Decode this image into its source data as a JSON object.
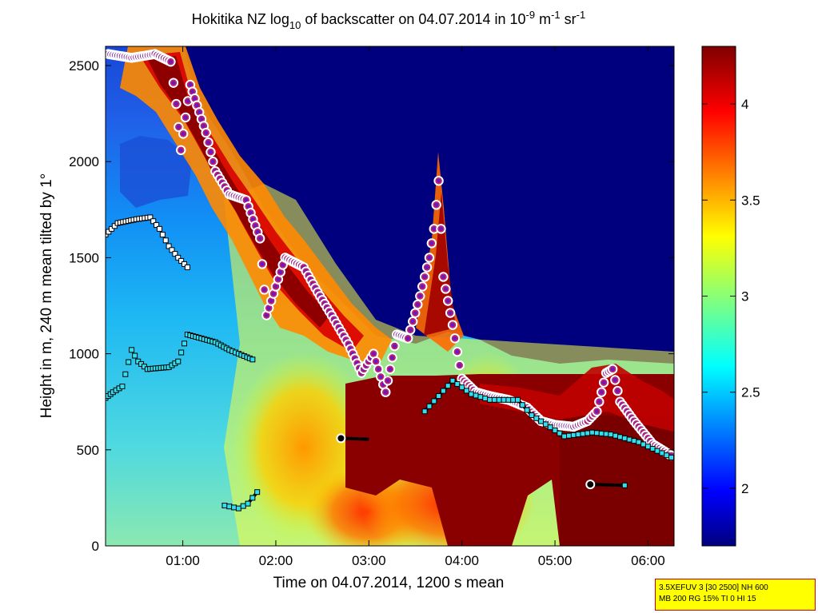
{
  "title": {
    "prefix": "Hokitika NZ log",
    "sub": "10",
    "mid": " of backscatter on 04.07.2014 in 10",
    "sup1": "-9",
    "unit1": " m",
    "sup2": "-1",
    "unit2": " sr",
    "sup3": "-1"
  },
  "infobox": {
    "line1": "3.5XEFUV 3 [30 2500] NH 600",
    "line2": "MB 200 RG 15% TI 0 HI 15"
  },
  "chart_data": {
    "type": "heatmap",
    "xlabel": "Time on 04.07.2014, 1200 s mean",
    "ylabel": "Height in m, 240 m mean tilted by 1°",
    "xlim_hours": [
      0.17,
      6.28
    ],
    "ylim": [
      0,
      2600
    ],
    "xticks": [
      {
        "v": 1,
        "label": "01:00"
      },
      {
        "v": 2,
        "label": "02:00"
      },
      {
        "v": 3,
        "label": "03:00"
      },
      {
        "v": 4,
        "label": "04:00"
      },
      {
        "v": 5,
        "label": "05:00"
      },
      {
        "v": 6,
        "label": "06:00"
      }
    ],
    "yticks": [
      0,
      500,
      1000,
      1500,
      2000,
      2500
    ],
    "colorbar": {
      "range": [
        1.7,
        4.3
      ],
      "ticks": [
        2,
        2.5,
        3,
        3.5,
        4
      ],
      "colormap": "jet",
      "colors": [
        "#00007f",
        "#0000ff",
        "#00ffff",
        "#ffff00",
        "#ff0000",
        "#7f0000"
      ]
    },
    "cloud_base": [
      {
        "t": 0.2,
        "h": 2560
      },
      {
        "t": 0.45,
        "h": 2540
      },
      {
        "t": 0.7,
        "h": 2560
      },
      {
        "t": 0.87,
        "h": 2520
      },
      {
        "t": 0.93,
        "h": 2300
      },
      {
        "t": 0.98,
        "h": 2060
      },
      {
        "t": 1.08,
        "h": 2400
      },
      {
        "t": 1.25,
        "h": 2150
      },
      {
        "t": 1.35,
        "h": 1950
      },
      {
        "t": 1.5,
        "h": 1830
      },
      {
        "t": 1.68,
        "h": 1800
      },
      {
        "t": 1.83,
        "h": 1600
      },
      {
        "t": 1.9,
        "h": 1200
      },
      {
        "t": 2.0,
        "h": 1350
      },
      {
        "t": 2.1,
        "h": 1500
      },
      {
        "t": 2.3,
        "h": 1450
      },
      {
        "t": 2.45,
        "h": 1320
      },
      {
        "t": 2.6,
        "h": 1200
      },
      {
        "t": 2.78,
        "h": 1050
      },
      {
        "t": 2.92,
        "h": 900
      },
      {
        "t": 3.05,
        "h": 1000
      },
      {
        "t": 3.18,
        "h": 800
      },
      {
        "t": 3.3,
        "h": 1100
      },
      {
        "t": 3.42,
        "h": 1080
      },
      {
        "t": 3.55,
        "h": 1300
      },
      {
        "t": 3.65,
        "h": 1500
      },
      {
        "t": 3.7,
        "h": 1650
      },
      {
        "t": 3.75,
        "h": 1900
      },
      {
        "t": 3.8,
        "h": 1400
      },
      {
        "t": 3.9,
        "h": 1150
      },
      {
        "t": 4.0,
        "h": 870
      },
      {
        "t": 4.15,
        "h": 800
      },
      {
        "t": 4.3,
        "h": 780
      },
      {
        "t": 4.5,
        "h": 760
      },
      {
        "t": 4.7,
        "h": 720
      },
      {
        "t": 4.85,
        "h": 650
      },
      {
        "t": 5.0,
        "h": 630
      },
      {
        "t": 5.2,
        "h": 620
      },
      {
        "t": 5.35,
        "h": 650
      },
      {
        "t": 5.45,
        "h": 700
      },
      {
        "t": 5.55,
        "h": 900
      },
      {
        "t": 5.62,
        "h": 920
      },
      {
        "t": 5.7,
        "h": 750
      },
      {
        "t": 5.85,
        "h": 650
      },
      {
        "t": 6.05,
        "h": 530
      },
      {
        "t": 6.25,
        "h": 470
      }
    ],
    "aerosol_layer": [
      {
        "t": 0.17,
        "h": 770
      },
      {
        "t": 0.25,
        "h": 800
      },
      {
        "t": 0.35,
        "h": 830
      },
      {
        "t": 0.45,
        "h": 1020
      },
      {
        "t": 0.52,
        "h": 960
      },
      {
        "t": 0.62,
        "h": 920
      },
      {
        "t": 0.85,
        "h": 930
      },
      {
        "t": 0.95,
        "h": 960
      },
      {
        "t": 1.05,
        "h": 1100
      },
      {
        "t": 1.2,
        "h": 1080
      },
      {
        "t": 1.35,
        "h": 1060
      },
      {
        "t": 1.5,
        "h": 1020
      },
      {
        "t": 1.6,
        "h": 1000
      },
      {
        "t": 1.75,
        "h": 970
      }
    ],
    "upper_layer": [
      {
        "t": 0.17,
        "h": 1620
      },
      {
        "t": 0.3,
        "h": 1680
      },
      {
        "t": 0.5,
        "h": 1700
      },
      {
        "t": 0.65,
        "h": 1710
      },
      {
        "t": 0.75,
        "h": 1650
      },
      {
        "t": 0.85,
        "h": 1560
      },
      {
        "t": 0.95,
        "h": 1500
      },
      {
        "t": 1.05,
        "h": 1450
      }
    ],
    "boundary_layer": [
      {
        "t": 2.7,
        "h": 560
      },
      {
        "t": 3.0,
        "h": 555
      },
      {
        "t": 3.6,
        "h": 700
      },
      {
        "t": 3.9,
        "h": 860
      },
      {
        "t": 4.1,
        "h": 790
      },
      {
        "t": 4.3,
        "h": 760
      },
      {
        "t": 4.6,
        "h": 760
      },
      {
        "t": 4.75,
        "h": 680
      },
      {
        "t": 5.1,
        "h": 570
      },
      {
        "t": 5.4,
        "h": 590
      },
      {
        "t": 5.6,
        "h": 580
      },
      {
        "t": 5.9,
        "h": 540
      },
      {
        "t": 6.25,
        "h": 460
      }
    ],
    "low_layer": [
      {
        "t": 1.45,
        "h": 210
      },
      {
        "t": 1.6,
        "h": 195
      },
      {
        "t": 1.7,
        "h": 220
      },
      {
        "t": 1.8,
        "h": 280
      }
    ],
    "low_layer2": [
      {
        "t": 5.38,
        "h": 320
      },
      {
        "t": 5.75,
        "h": 315
      }
    ]
  }
}
